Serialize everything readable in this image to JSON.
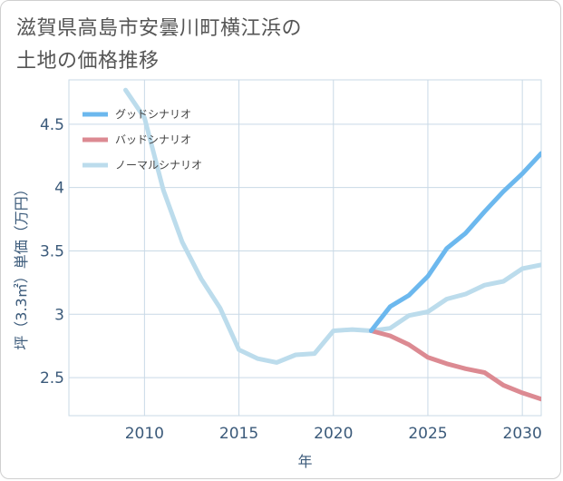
{
  "title": {
    "line1": "滋賀県高島市安曇川町横江浜の",
    "line2": "土地の価格推移"
  },
  "chart_data": {
    "type": "line",
    "xlabel": "年",
    "ylabel": "坪（3.3㎡）単価（万円）",
    "xlim": [
      2006,
      2031
    ],
    "ylim": [
      2.2,
      4.85
    ],
    "xticks": [
      2010,
      2015,
      2020,
      2025,
      2030
    ],
    "yticks": [
      2.5,
      3,
      3.5,
      4,
      4.5
    ],
    "ytick_labels": [
      "2.5",
      "3",
      "3.5",
      "4",
      "4.5"
    ],
    "grid": true,
    "legend_position": "top-left",
    "series": [
      {
        "name": "グッドシナリオ",
        "color": "#6cb8ee",
        "x": [
          2022,
          2023,
          2024,
          2025,
          2026,
          2027,
          2028,
          2029,
          2030,
          2031
        ],
        "y": [
          2.87,
          3.06,
          3.15,
          3.3,
          3.52,
          3.64,
          3.81,
          3.97,
          4.11,
          4.27
        ]
      },
      {
        "name": "バッドシナリオ",
        "color": "#dc8a92",
        "x": [
          2022,
          2023,
          2024,
          2025,
          2026,
          2027,
          2028,
          2029,
          2030,
          2031
        ],
        "y": [
          2.87,
          2.83,
          2.76,
          2.66,
          2.61,
          2.57,
          2.54,
          2.44,
          2.38,
          2.33
        ]
      },
      {
        "name": "ノーマルシナリオ",
        "color": "#bcdcec",
        "x": [
          2009,
          2010,
          2011,
          2012,
          2013,
          2014,
          2015,
          2016,
          2017,
          2018,
          2019,
          2020,
          2021,
          2022,
          2023,
          2024,
          2025,
          2026,
          2027,
          2028,
          2029,
          2030,
          2031
        ],
        "y": [
          4.77,
          4.55,
          3.98,
          3.57,
          3.28,
          3.05,
          2.72,
          2.65,
          2.62,
          2.68,
          2.69,
          2.87,
          2.88,
          2.87,
          2.89,
          2.99,
          3.02,
          3.12,
          3.16,
          3.23,
          3.26,
          3.36,
          3.39
        ]
      }
    ]
  }
}
